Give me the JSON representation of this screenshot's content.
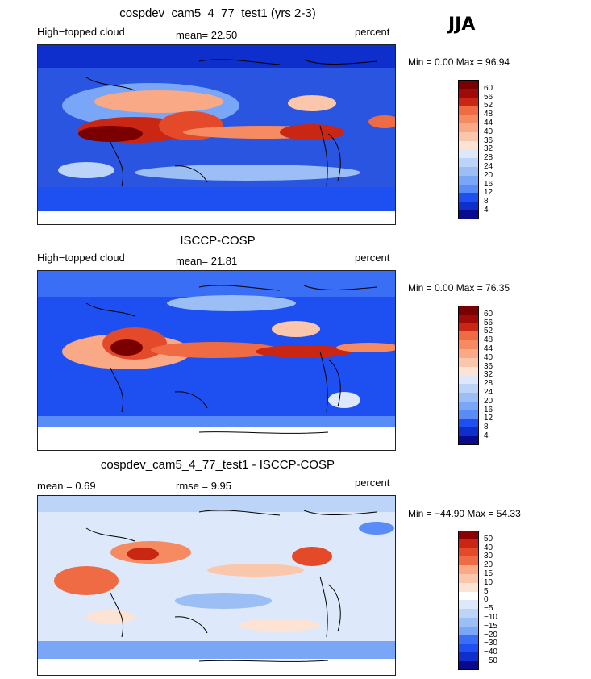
{
  "season": "JJA",
  "colors": {
    "palette_10": [
      "#0a0a8c",
      "#0f2fcc",
      "#1e4ff0",
      "#3a6ef5",
      "#5a8cf7",
      "#7aa6f7",
      "#9bbef5",
      "#bcd4f7",
      "#dde8fa",
      "#ffffff",
      "#fde3d4",
      "#fbc7ac",
      "#f9a985",
      "#f68b62",
      "#ef6b44",
      "#e44a2a",
      "#c92614",
      "#a00a08",
      "#7a0000"
    ],
    "diff_palette": [
      "#0a0a8c",
      "#0f2fcc",
      "#1e4ff0",
      "#3a6ef5",
      "#5a8cf7",
      "#7aa6f7",
      "#9bbef5",
      "#bcd4f7",
      "#dde8fa",
      "#ffffff",
      "#fde3d4",
      "#fbc7ac",
      "#f9a985",
      "#f68b62",
      "#ef6b44",
      "#e44a2a",
      "#c92614",
      "#8c0000"
    ]
  },
  "panels": [
    {
      "title": "cospdev_cam5_4_77_test1 (yrs 2-3)",
      "left_label": "High−topped cloud",
      "mean_label": "mean=  22.50",
      "units": "percent",
      "min_max": "Min =   0.00 Max =  96.94",
      "colorbar_labels": [
        "60",
        "56",
        "52",
        "48",
        "44",
        "40",
        "36",
        "32",
        "28",
        "24",
        "20",
        "16",
        "12",
        "8",
        "4"
      ]
    },
    {
      "title": "ISCCP-COSP",
      "left_label": "High−topped cloud",
      "mean_label": "mean=  21.81",
      "units": "percent",
      "min_max": "Min =   0.00 Max =  76.35",
      "colorbar_labels": [
        "60",
        "56",
        "52",
        "48",
        "44",
        "40",
        "36",
        "32",
        "28",
        "24",
        "20",
        "16",
        "12",
        "8",
        "4"
      ]
    },
    {
      "title": "cospdev_cam5_4_77_test1 - ISCCP-COSP",
      "left_label": "mean =   0.69",
      "mean_label": "rmse =   9.95",
      "units": "percent",
      "min_max": "Min = −44.90 Max =  54.33",
      "colorbar_labels": [
        "50",
        "40",
        "30",
        "20",
        "15",
        "10",
        "5",
        "0",
        "−5",
        "−10",
        "−15",
        "−20",
        "−30",
        "−40",
        "−50"
      ]
    }
  ],
  "chart_data": [
    {
      "type": "heatmap",
      "title": "cospdev_cam5_4_77_test1 (yrs 2-3)",
      "variable": "High-topped cloud",
      "units": "percent",
      "mean": 22.5,
      "min": 0.0,
      "max": 96.94,
      "contour_levels": [
        4,
        8,
        12,
        16,
        20,
        24,
        28,
        32,
        36,
        40,
        44,
        48,
        52,
        56,
        60
      ]
    },
    {
      "type": "heatmap",
      "title": "ISCCP-COSP",
      "variable": "High-topped cloud",
      "units": "percent",
      "mean": 21.81,
      "min": 0.0,
      "max": 76.35,
      "contour_levels": [
        4,
        8,
        12,
        16,
        20,
        24,
        28,
        32,
        36,
        40,
        44,
        48,
        52,
        56,
        60
      ]
    },
    {
      "type": "heatmap",
      "title": "cospdev_cam5_4_77_test1 - ISCCP-COSP",
      "units": "percent",
      "mean": 0.69,
      "rmse": 9.95,
      "min": -44.9,
      "max": 54.33,
      "contour_levels": [
        -50,
        -40,
        -30,
        -20,
        -15,
        -10,
        -5,
        0,
        5,
        10,
        15,
        20,
        30,
        40,
        50
      ]
    }
  ]
}
